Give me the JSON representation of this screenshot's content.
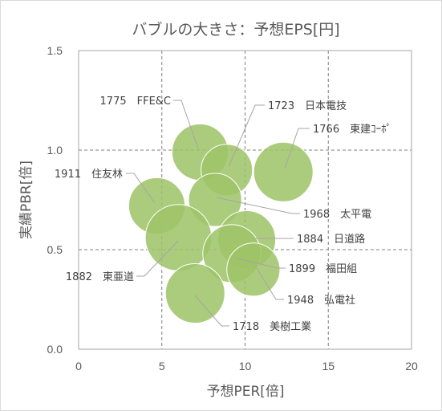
{
  "chart_data": {
    "type": "scatter",
    "title": "バブルの大きさ：予想EPS[円]",
    "xlabel": "予想PER[倍]",
    "ylabel": "実績PBR[倍]",
    "xlim": [
      0,
      20
    ],
    "ylim": [
      0,
      1.5
    ],
    "x_ticks": [
      "0",
      "5",
      "10",
      "15",
      "20"
    ],
    "y_ticks": [
      "0.0",
      "0.5",
      "1.0",
      "1.5"
    ],
    "grid": true,
    "bubble_color": "#9dc366",
    "points": [
      {
        "label": "1775　FFE&C",
        "x": 7.3,
        "y": 0.99,
        "size": 0.9
      },
      {
        "label": "1723　日本電技",
        "x": 8.9,
        "y": 0.9,
        "size": 0.75
      },
      {
        "label": "1766　東建ｺｰﾎﾟ",
        "x": 12.3,
        "y": 0.89,
        "size": 1.0
      },
      {
        "label": "1911　住友林",
        "x": 4.7,
        "y": 0.72,
        "size": 0.9
      },
      {
        "label": "1968　太平電",
        "x": 8.2,
        "y": 0.75,
        "size": 0.8
      },
      {
        "label": "1882　東亜道",
        "x": 6.0,
        "y": 0.56,
        "size": 1.25
      },
      {
        "label": "1884　日道路",
        "x": 10.1,
        "y": 0.55,
        "size": 0.95
      },
      {
        "label": "1899　福田組",
        "x": 9.2,
        "y": 0.48,
        "size": 0.95
      },
      {
        "label": "1948　弘電社",
        "x": 10.5,
        "y": 0.4,
        "size": 0.8
      },
      {
        "label": "1718　美樹工業",
        "x": 7.0,
        "y": 0.28,
        "size": 1.0
      }
    ]
  }
}
